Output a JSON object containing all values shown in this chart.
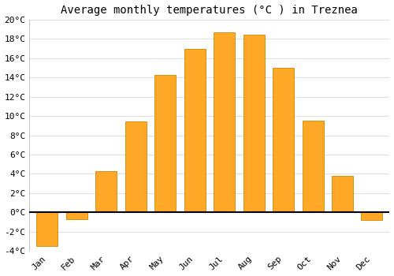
{
  "title": "Average monthly temperatures (°C ) in Treznea",
  "months": [
    "Jan",
    "Feb",
    "Mar",
    "Apr",
    "May",
    "Jun",
    "Jul",
    "Aug",
    "Sep",
    "Oct",
    "Nov",
    "Dec"
  ],
  "values": [
    -3.5,
    -0.7,
    4.3,
    9.4,
    14.3,
    17.0,
    18.7,
    18.4,
    15.0,
    9.5,
    3.8,
    -0.8
  ],
  "bar_color": "#FFA726",
  "bar_edge_color": "#CC8800",
  "background_color": "#ffffff",
  "grid_color": "#e0e0e0",
  "ylim": [
    -4,
    20
  ],
  "yticks": [
    -4,
    -2,
    0,
    2,
    4,
    6,
    8,
    10,
    12,
    14,
    16,
    18,
    20
  ],
  "ytick_labels": [
    "-4°C",
    "-2°C",
    "0°C",
    "2°C",
    "4°C",
    "6°C",
    "8°C",
    "10°C",
    "12°C",
    "14°C",
    "16°C",
    "18°C",
    "20°C"
  ],
  "title_fontsize": 10,
  "tick_fontsize": 8,
  "font_family": "monospace",
  "bar_width": 0.72
}
